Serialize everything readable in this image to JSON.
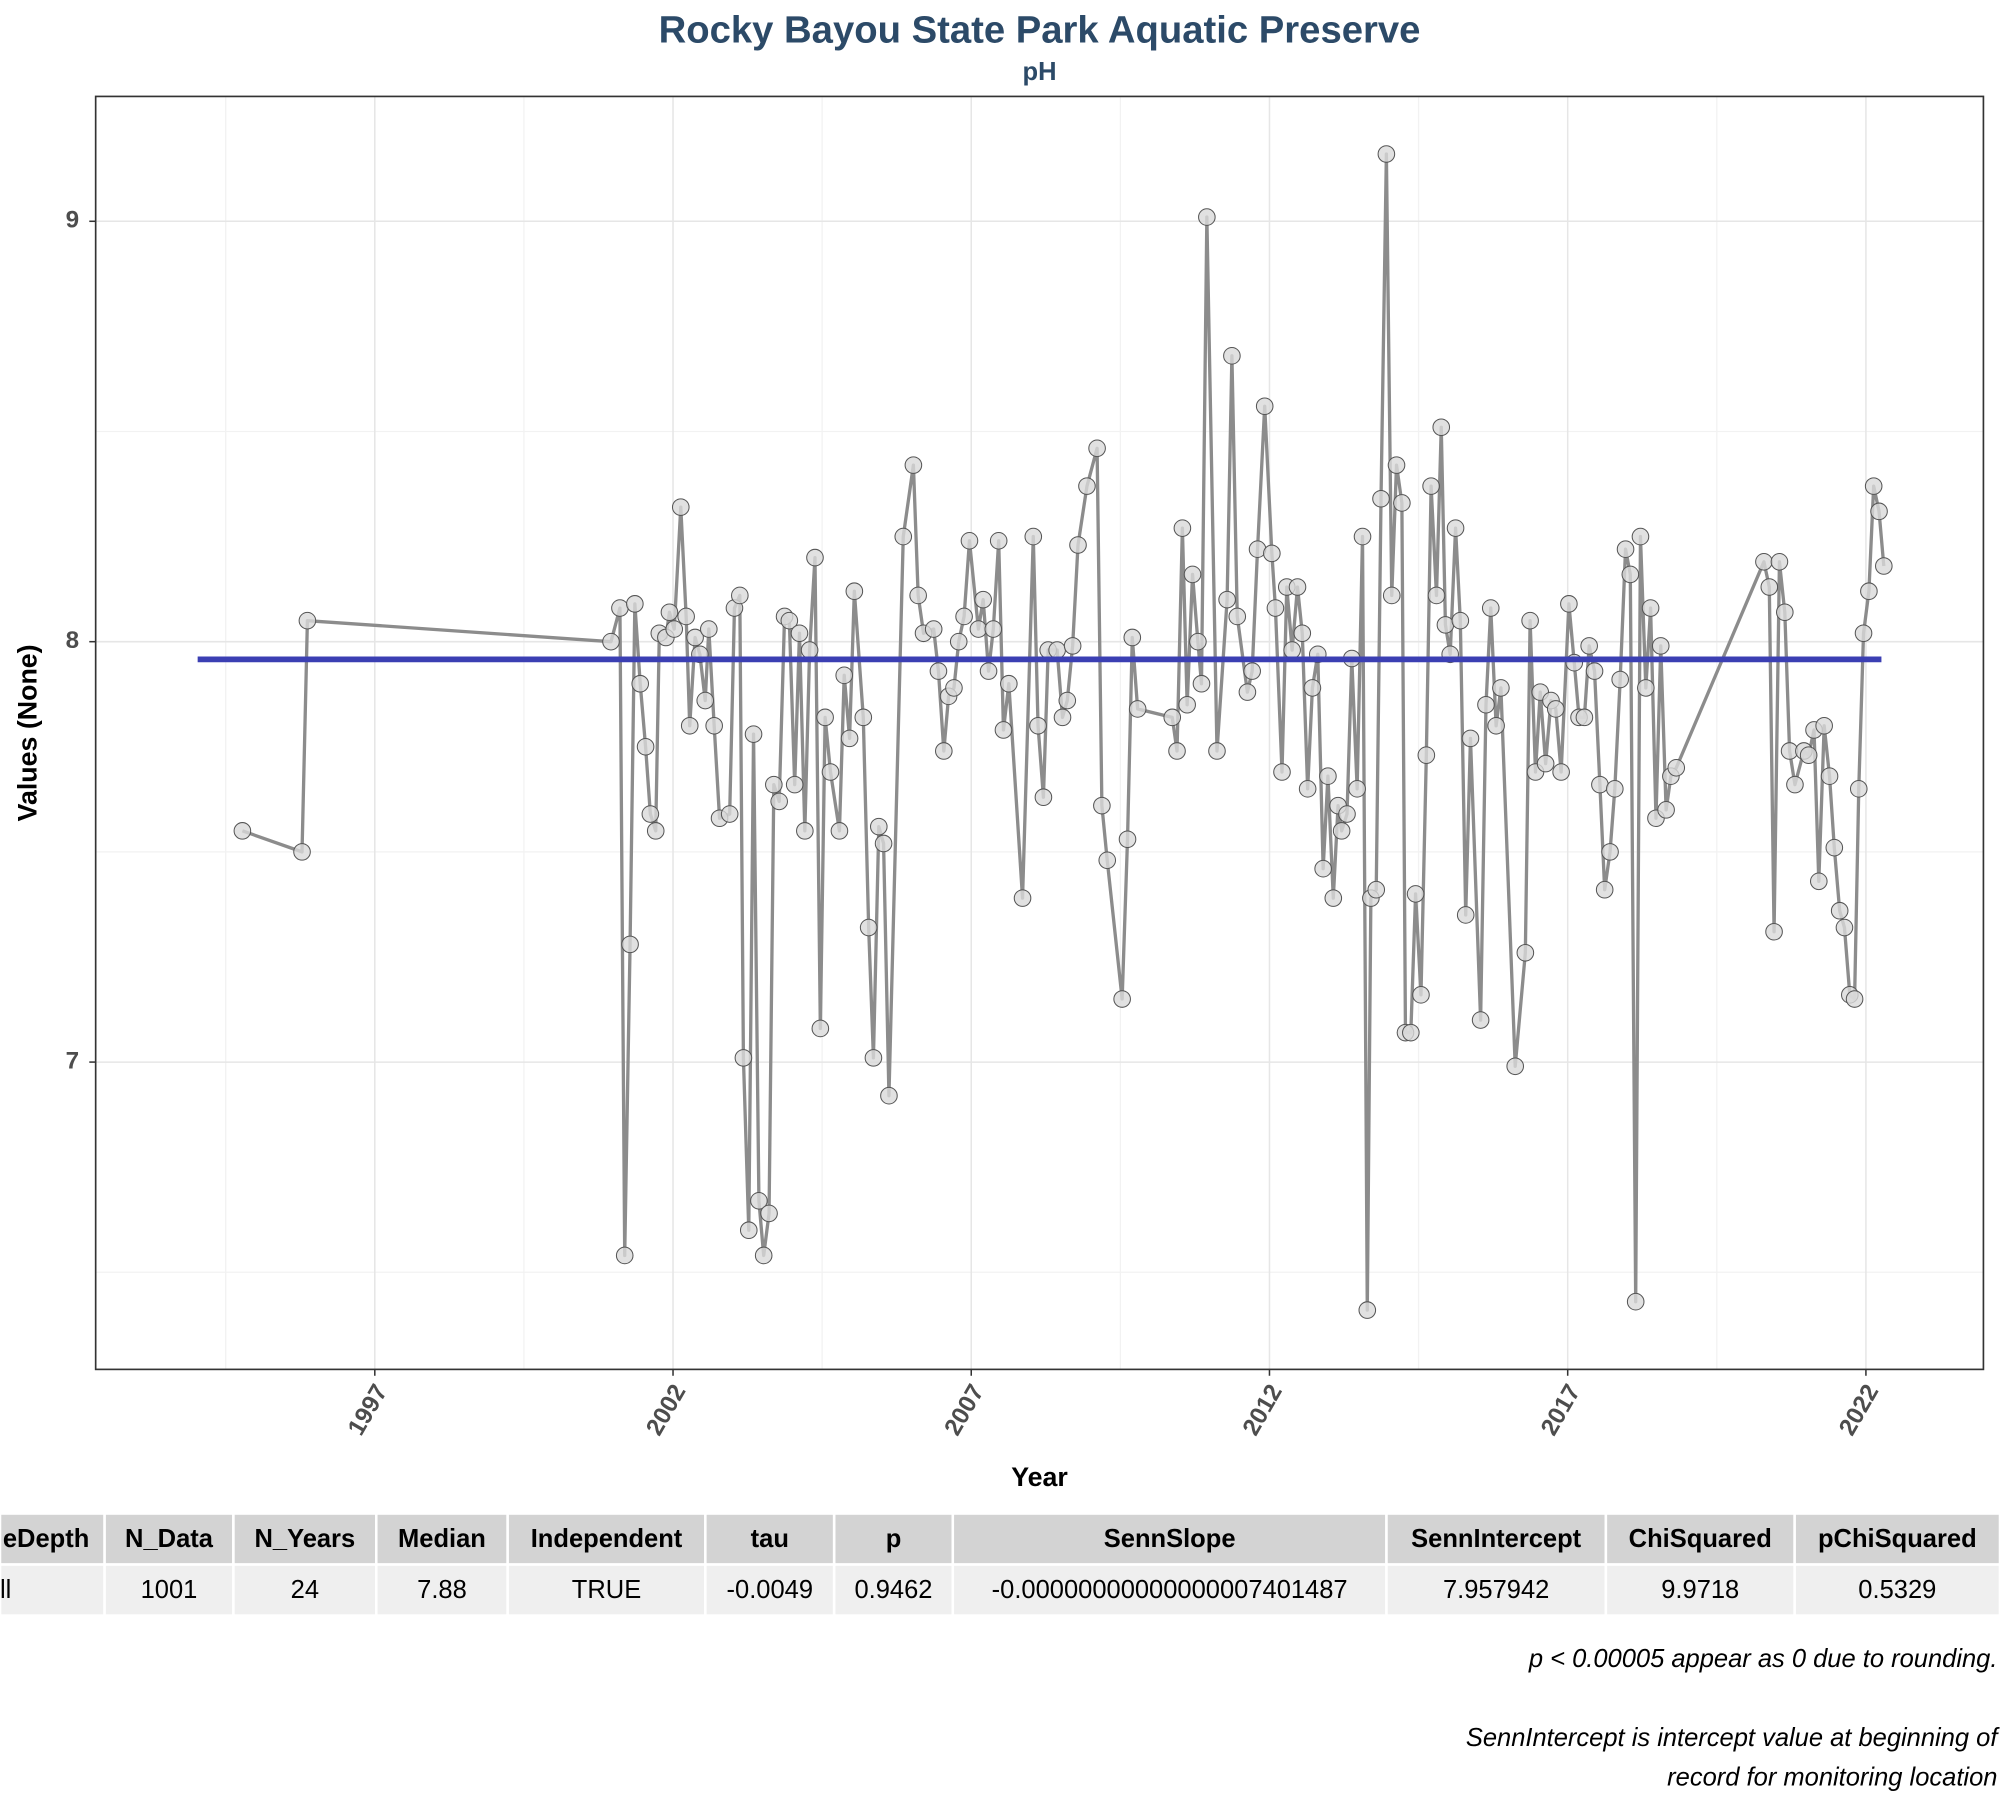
{
  "chart_data": {
    "type": "line",
    "title": "Rocky Bayou State Park Aquatic Preserve",
    "subtitle": "pH",
    "x_label": "Year",
    "y_label": "Values (None)",
    "xlim": [
      1992.32,
      2023.97
    ],
    "ylim": [
      6.269,
      9.297
    ],
    "xticks": [
      1997,
      2002,
      2007,
      2012,
      2017,
      2022
    ],
    "yticks": [
      7,
      8,
      9
    ],
    "grid": true,
    "series": [
      {
        "color": "#8c8c8c",
        "markers": true,
        "x": [
          1994.78,
          1995.78,
          1995.87,
          2000.96,
          2001.11,
          2001.19,
          2001.28,
          2001.36,
          2001.45,
          2001.54,
          2001.62,
          2001.71,
          2001.77,
          2001.88,
          2001.94,
          2002.02,
          2002.13,
          2002.22,
          2002.28,
          2002.37,
          2002.45,
          2002.54,
          2002.6,
          2002.69,
          2002.78,
          2002.95,
          2003.03,
          2003.12,
          2003.18,
          2003.27,
          2003.35,
          2003.44,
          2003.52,
          2003.61,
          2003.69,
          2003.78,
          2003.87,
          2003.95,
          2004.04,
          2004.12,
          2004.21,
          2004.29,
          2004.38,
          2004.47,
          2004.55,
          2004.64,
          2004.79,
          2004.87,
          2004.96,
          2005.04,
          2005.19,
          2005.28,
          2005.36,
          2005.45,
          2005.53,
          2005.62,
          2005.86,
          2006.03,
          2006.11,
          2006.2,
          2006.37,
          2006.45,
          2006.54,
          2006.62,
          2006.71,
          2006.79,
          2006.88,
          2006.97,
          2007.12,
          2007.2,
          2007.29,
          2007.37,
          2007.46,
          2007.54,
          2007.63,
          2007.86,
          2008.04,
          2008.12,
          2008.21,
          2008.29,
          2008.44,
          2008.53,
          2008.61,
          2008.7,
          2008.79,
          2008.94,
          2009.11,
          2009.19,
          2009.28,
          2009.53,
          2009.62,
          2009.7,
          2009.79,
          2010.37,
          2010.45,
          2010.54,
          2010.62,
          2010.71,
          2010.8,
          2010.86,
          2010.95,
          2011.12,
          2011.29,
          2011.37,
          2011.46,
          2011.63,
          2011.71,
          2011.8,
          2011.92,
          2012.04,
          2012.1,
          2012.21,
          2012.29,
          2012.38,
          2012.47,
          2012.55,
          2012.64,
          2012.72,
          2012.81,
          2012.9,
          2012.98,
          2013.07,
          2013.15,
          2013.21,
          2013.3,
          2013.38,
          2013.47,
          2013.56,
          2013.64,
          2013.7,
          2013.79,
          2013.87,
          2013.96,
          2014.05,
          2014.13,
          2014.22,
          2014.28,
          2014.37,
          2014.45,
          2014.54,
          2014.63,
          2014.71,
          2014.8,
          2014.88,
          2014.95,
          2015.03,
          2015.12,
          2015.2,
          2015.29,
          2015.37,
          2015.54,
          2015.63,
          2015.71,
          2015.8,
          2015.88,
          2016.12,
          2016.29,
          2016.37,
          2016.46,
          2016.54,
          2016.63,
          2016.72,
          2016.8,
          2016.89,
          2017.02,
          2017.11,
          2017.19,
          2017.28,
          2017.36,
          2017.45,
          2017.54,
          2017.62,
          2017.71,
          2017.79,
          2017.88,
          2017.97,
          2018.05,
          2018.14,
          2018.22,
          2018.31,
          2018.39,
          2018.48,
          2018.56,
          2018.65,
          2018.73,
          2018.82,
          2020.29,
          2020.38,
          2020.46,
          2020.55,
          2020.64,
          2020.72,
          2020.81,
          2020.96,
          2021.04,
          2021.13,
          2021.21,
          2021.3,
          2021.39,
          2021.47,
          2021.56,
          2021.64,
          2021.73,
          2021.81,
          2021.88,
          2021.96,
          2022.05,
          2022.13,
          2022.22,
          2022.3
        ],
        "values": [
          7.55,
          7.5,
          8.05,
          8.0,
          8.08,
          6.54,
          7.28,
          8.09,
          7.9,
          7.75,
          7.59,
          7.55,
          8.02,
          8.01,
          8.07,
          8.03,
          8.32,
          8.06,
          7.8,
          8.01,
          7.97,
          7.86,
          8.03,
          7.8,
          7.58,
          7.59,
          8.08,
          8.11,
          7.01,
          6.6,
          7.78,
          6.67,
          6.54,
          6.64,
          7.66,
          7.62,
          8.06,
          8.05,
          7.66,
          8.02,
          7.55,
          7.98,
          8.2,
          7.08,
          7.82,
          7.69,
          7.55,
          7.92,
          7.77,
          8.12,
          7.82,
          7.32,
          7.01,
          7.56,
          7.52,
          6.92,
          8.25,
          8.42,
          8.11,
          8.02,
          8.03,
          7.93,
          7.74,
          7.87,
          7.89,
          8.0,
          8.06,
          8.24,
          8.03,
          8.1,
          7.93,
          8.03,
          8.24,
          7.79,
          7.9,
          7.39,
          8.25,
          7.8,
          7.63,
          7.98,
          7.98,
          7.82,
          7.86,
          7.99,
          8.23,
          8.37,
          8.46,
          7.61,
          7.48,
          7.15,
          7.53,
          8.01,
          7.84,
          7.82,
          7.74,
          8.27,
          7.85,
          8.16,
          8.0,
          7.9,
          9.01,
          7.74,
          8.1,
          8.68,
          8.06,
          7.88,
          7.93,
          8.22,
          8.56,
          8.21,
          8.08,
          7.69,
          8.13,
          7.98,
          8.13,
          8.02,
          7.65,
          7.89,
          7.97,
          7.46,
          7.68,
          7.39,
          7.61,
          7.55,
          7.59,
          7.96,
          7.65,
          8.25,
          6.41,
          7.39,
          7.41,
          8.34,
          9.16,
          8.11,
          8.42,
          8.33,
          7.07,
          7.07,
          7.4,
          7.16,
          7.73,
          8.37,
          8.11,
          8.51,
          8.04,
          7.97,
          8.27,
          8.05,
          7.35,
          7.77,
          7.1,
          7.85,
          8.08,
          7.8,
          7.89,
          6.99,
          7.26,
          8.05,
          7.69,
          7.88,
          7.71,
          7.86,
          7.84,
          7.69,
          8.09,
          7.95,
          7.82,
          7.82,
          7.99,
          7.93,
          7.66,
          7.41,
          7.5,
          7.65,
          7.91,
          8.22,
          8.16,
          6.43,
          8.25,
          7.89,
          8.08,
          7.58,
          7.99,
          7.6,
          7.68,
          7.7,
          8.19,
          8.13,
          7.31,
          8.19,
          8.07,
          7.74,
          7.66,
          7.74,
          7.73,
          7.79,
          7.43,
          7.8,
          7.68,
          7.51,
          7.36,
          7.32,
          7.16,
          7.15,
          7.65,
          8.02,
          8.12,
          8.37,
          8.31,
          8.18
        ]
      },
      {
        "color": "#3b3fb3",
        "markers": false,
        "x": [
          1994.03,
          2022.26
        ],
        "values": [
          7.957942,
          7.957942
        ]
      }
    ]
  },
  "table": {
    "columns": [
      "eDepth",
      "N_Data",
      "N_Years",
      "Median",
      "Independent",
      "tau",
      "p",
      "SennSlope",
      "SennIntercept",
      "ChiSquared",
      "pChiSquared"
    ],
    "rows": [
      [
        "ll",
        "1001",
        "24",
        "7.88",
        "TRUE",
        "-0.0049",
        "0.9462",
        "-0.00000000000000007401487",
        "7.957942",
        "9.9718",
        "0.5329"
      ]
    ]
  },
  "notes": [
    "p < 0.00005 appear as 0 due to rounding.",
    "SennIntercept is intercept value at beginning of",
    "record for monitoring location"
  ]
}
